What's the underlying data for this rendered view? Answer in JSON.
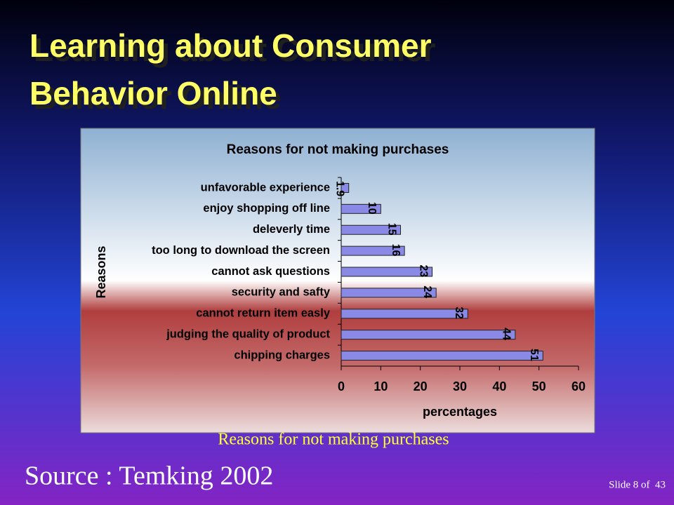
{
  "slide_title": [
    "Learning about Consumer",
    "Behavior Online"
  ],
  "caption": "Reasons for not making purchases",
  "source": "Source : Temking 2002",
  "slide_number": "Slide 8 of  43",
  "chart_data": {
    "type": "hbar",
    "title": "Reasons for not making purchases",
    "categories": [
      "unfavorable experience",
      "enjoy shopping off line",
      "deleverly time",
      "too long to download the screen",
      "cannot ask questions",
      "security and safty",
      "cannot return item easly",
      "judging the quality of product",
      "chipping charges"
    ],
    "values": [
      1.9,
      10,
      15,
      16,
      23,
      24,
      32,
      44,
      51
    ],
    "color": "#8a8ae6",
    "xlabel": "percentages",
    "ylabel": "Reasons",
    "xlim": [
      0,
      60
    ],
    "xticks": [
      0,
      10,
      20,
      30,
      40,
      50,
      60
    ]
  }
}
